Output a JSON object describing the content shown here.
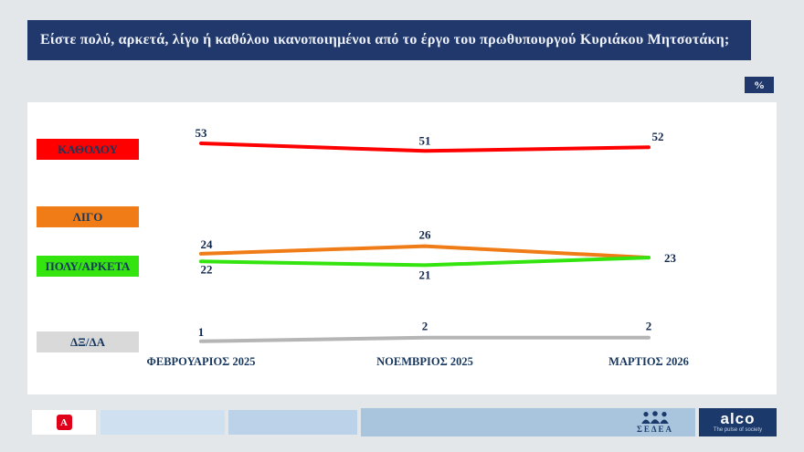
{
  "header": {
    "question": "Είστε πολύ, αρκετά, λίγο ή καθόλου ικανοποιημένοι από το έργο του πρωθυπουργού Κυριάκου Μητσοτάκη;",
    "unit_badge": "%"
  },
  "chart_data": {
    "type": "line",
    "title": "Είστε πολύ, αρκετά, λίγο ή καθόλου ικανοποιημένοι από το έργο του πρωθυπουργού Κυριάκου Μητσοτάκη;",
    "categories": [
      "ΦΕΒΡΟΥΑΡΙΟΣ 2025",
      "ΝΟΕΜΒΡΙΟΣ 2025",
      "ΜΑΡΤΙΟΣ 2026"
    ],
    "series": [
      {
        "name": "ΚΑΘΟΛΟΥ",
        "color": "#fe0000",
        "box_color": "#fe0000",
        "values": [
          53,
          51,
          52
        ],
        "labels": [
          "53",
          "51",
          "52"
        ]
      },
      {
        "name": "ΛΙΓΟ",
        "color": "#ef7c16",
        "box_color": "#ef7c16",
        "values": [
          24,
          26,
          23
        ],
        "labels": [
          "24",
          "26",
          "23"
        ]
      },
      {
        "name": "ΠΟΛΥ/ΑΡΚΕΤΑ",
        "color": "#33e40f",
        "box_color": "#33e40f",
        "values": [
          22,
          21,
          23
        ],
        "labels": [
          "22",
          "21",
          ""
        ]
      },
      {
        "name": "ΔΞ/ΔΑ",
        "color": "#b5b5b5",
        "box_color": "#d9d9d9",
        "values": [
          1,
          2,
          2
        ],
        "labels": [
          "1",
          "2",
          "2"
        ]
      }
    ],
    "ylim": [
      0,
      60
    ],
    "grid": false,
    "legend_position": "left",
    "value_label_color": "#10264d",
    "unit": "%"
  },
  "footer": {
    "alpha_label": "A",
    "sedea_label": "ΣΕΔΕΑ",
    "alco_name": "alco",
    "alco_tagline": "The pulse of society"
  }
}
